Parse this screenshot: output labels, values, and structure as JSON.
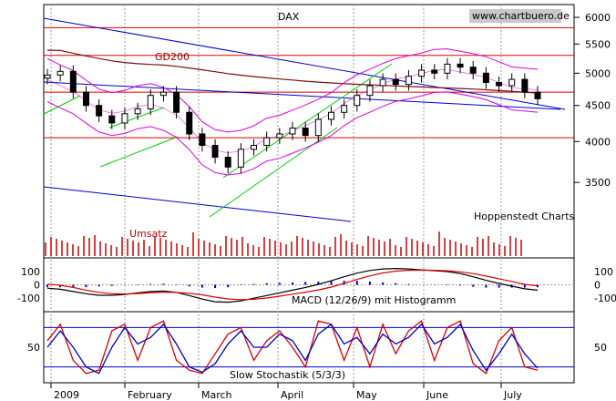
{
  "chart_data": {
    "type": "candlestick",
    "title": "DAX",
    "source": "www.chartbuero.de",
    "publisher": "Hoppenstedt Charts",
    "months": [
      "2009",
      "February",
      "March",
      "April",
      "May",
      "June",
      "July"
    ],
    "price_axis": {
      "scale": "log",
      "ticks": [
        3500,
        4000,
        4500,
        5000,
        5500,
        6000
      ],
      "range": [
        3000,
        6200
      ]
    },
    "horizontal_levels": [
      5800,
      5300,
      4700,
      4050
    ],
    "moving_average": {
      "name": "GD200"
    },
    "weekly_close": [
      4970,
      5030,
      4700,
      4500,
      4350,
      4250,
      4380,
      4450,
      4650,
      4700,
      4400,
      4100,
      3950,
      3800,
      3680,
      3900,
      3950,
      4050,
      4100,
      4180,
      4080,
      4300,
      4400,
      4500,
      4650,
      4800,
      4900,
      4820,
      4950,
      5050,
      5000,
      5150,
      5100,
      5000,
      4850,
      4800,
      4900,
      4700,
      4600
    ],
    "volume": {
      "label": "Umsatz"
    },
    "macd": {
      "label": "MACD (12/26/9) mit Histogramm",
      "ticks": [
        100,
        0,
        -100
      ],
      "range": [
        -180,
        180
      ],
      "macd_line": [
        -20,
        -30,
        -50,
        -70,
        -80,
        -85,
        -70,
        -60,
        -50,
        -40,
        -50,
        -80,
        -110,
        -130,
        -140,
        -120,
        -100,
        -80,
        -60,
        -40,
        -20,
        0,
        30,
        60,
        90,
        110,
        120,
        125,
        120,
        110,
        105,
        100,
        90,
        60,
        30,
        10,
        -10,
        -30,
        -50
      ],
      "signal_line": [
        10,
        0,
        -20,
        -40,
        -60,
        -70,
        -70,
        -65,
        -60,
        -55,
        -55,
        -60,
        -75,
        -90,
        -110,
        -115,
        -110,
        -100,
        -85,
        -70,
        -55,
        -40,
        -20,
        10,
        40,
        70,
        90,
        105,
        110,
        110,
        108,
        105,
        100,
        85,
        65,
        45,
        25,
        5,
        -20
      ]
    },
    "stochastic": {
      "label": "Slow Stochastik (5/3/3)",
      "ticks": [
        50
      ],
      "range": [
        0,
        100
      ],
      "levels": [
        80,
        20
      ],
      "k_line": [
        60,
        85,
        30,
        10,
        15,
        75,
        85,
        30,
        80,
        90,
        30,
        15,
        10,
        40,
        70,
        80,
        30,
        60,
        75,
        50,
        20,
        90,
        85,
        30,
        80,
        20,
        85,
        40,
        75,
        90,
        30,
        80,
        90,
        25,
        10,
        60,
        80,
        20,
        15
      ],
      "d_line": [
        50,
        75,
        50,
        20,
        10,
        50,
        80,
        55,
        65,
        85,
        55,
        20,
        12,
        25,
        55,
        75,
        50,
        50,
        70,
        60,
        30,
        70,
        85,
        55,
        65,
        40,
        70,
        55,
        65,
        85,
        55,
        65,
        85,
        45,
        15,
        40,
        70,
        40,
        18
      ]
    }
  }
}
